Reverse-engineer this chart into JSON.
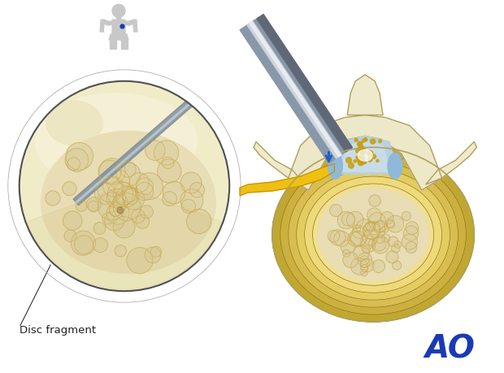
{
  "background_color": "#ffffff",
  "label_text": "Disc fragment",
  "label_fontsize": 9.5,
  "ao_text": "AO",
  "ao_color": "#1a3ab5",
  "ao_fontsize": 28,
  "fig_width": 6.2,
  "fig_height": 4.59,
  "dpi": 100,
  "colors": {
    "bone_light": "#f0eacc",
    "bone_mid": "#e0d49a",
    "bone_cream": "#ede8c8",
    "bone_outline": "#b0a060",
    "disc_yellow": "#e8d878",
    "disc_dark": "#c8b448",
    "nucleus": "#e8ddb5",
    "nucleus_lobe": "#ddd0a0",
    "nucleus_line": "#c8a84b",
    "scope_gray_light": "#ccd4dc",
    "scope_gray_dark": "#8898a8",
    "scope_white": "#e8eef4",
    "nerve_yellow": "#f0c010",
    "nerve_outline": "#c09000",
    "blue_accent": "#1a5fcc",
    "blue_light": "#7090cc",
    "ligament_blue": "#90b8d8",
    "canal_blue": "#b8d0e0",
    "dots_yellow": "#c8a010",
    "body_silhouette": "#c8c8c8",
    "body_outline": "#a0a0a0",
    "ring_gray": "#c0c0c0",
    "ring_dark": "#888888",
    "tissue_tan": "#d8cc98",
    "tissue_light": "#ece6c0",
    "scope_inner": "#e0e8f0"
  }
}
